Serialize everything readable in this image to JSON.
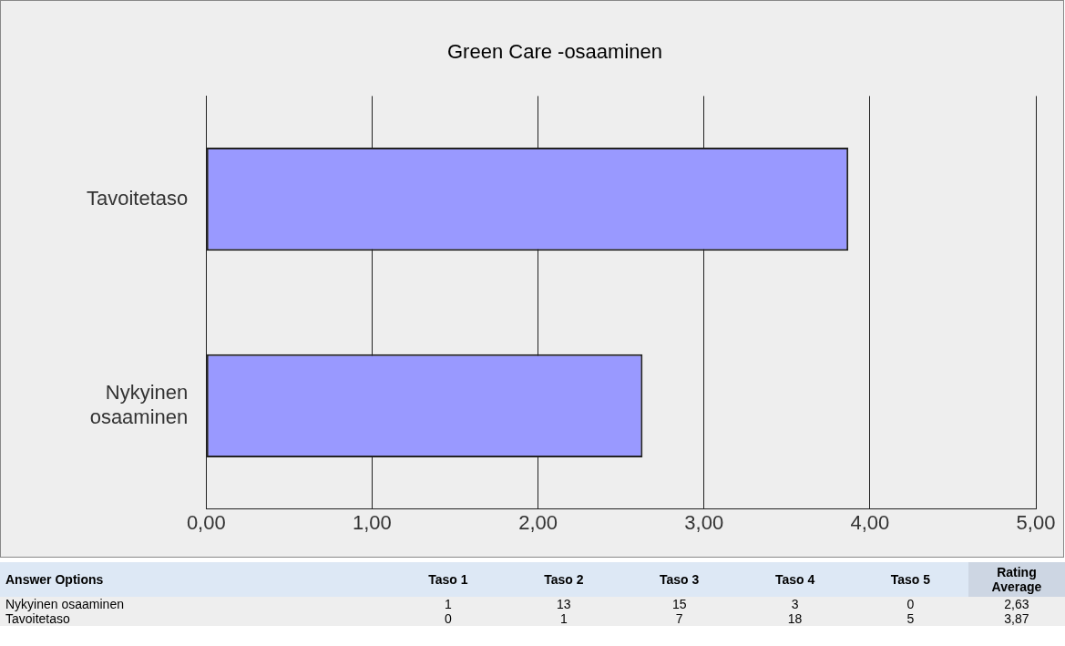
{
  "chart_data": [
    {
      "type": "bar",
      "title": "Green Care -osaaminen",
      "orientation": "horizontal",
      "categories": [
        "Tavoitetaso",
        "Nykyinen osaaminen"
      ],
      "values": [
        3.87,
        2.63
      ],
      "color": "#9999ff",
      "xlim": [
        0,
        5
      ],
      "xticks": [
        {
          "value": 0,
          "label": "0,00"
        },
        {
          "value": 1,
          "label": "1,00"
        },
        {
          "value": 2,
          "label": "2,00"
        },
        {
          "value": 3,
          "label": "3,00"
        },
        {
          "value": 4,
          "label": "4,00"
        },
        {
          "value": 5,
          "label": "5,00"
        }
      ],
      "grid": "x",
      "legend": false
    },
    {
      "type": "other",
      "ylabel": "Answer Options",
      "categories": [
        "Taso 1",
        "Taso 2",
        "Taso 3",
        "Taso 4",
        "Taso 5",
        "Rating Average"
      ],
      "y_categories": [
        "Nykyinen osaaminen",
        "Tavoitetaso"
      ],
      "cell_labels": [
        [
          "1",
          "13",
          "15",
          "3",
          "0",
          "2,63"
        ],
        [
          "0",
          "1",
          "7",
          "18",
          "5",
          "3,87"
        ]
      ]
    }
  ]
}
